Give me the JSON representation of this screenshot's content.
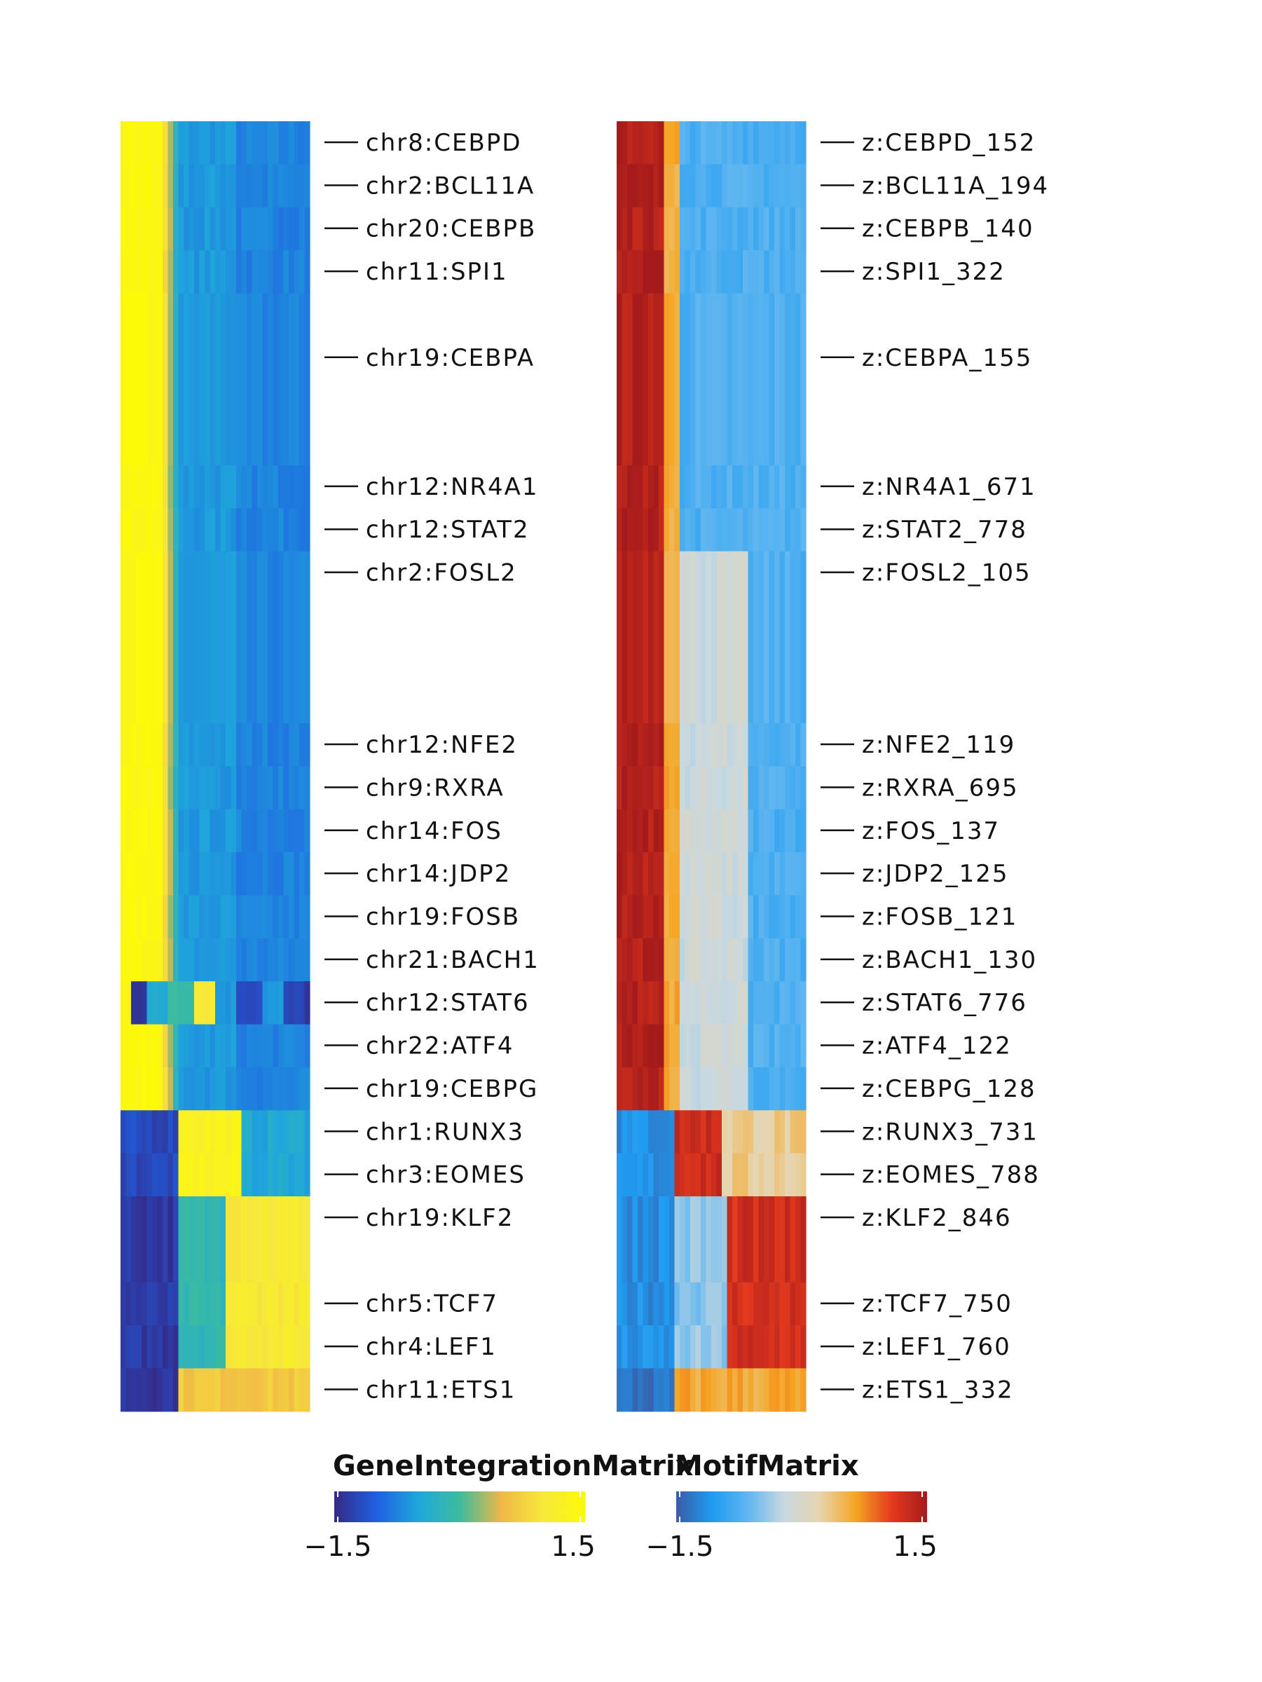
{
  "chart_data": [
    {
      "type": "heatmap",
      "name": "GeneIntegrationMatrix",
      "legend_title": "GeneIntegrationMatrix",
      "color_range": [
        -1.5,
        1.5
      ],
      "tick_labels": [
        "−1.5",
        "1.5"
      ],
      "palette": [
        "#352a87",
        "#1f5fe0",
        "#1fa7dc",
        "#3cbc9f",
        "#f0b846",
        "#f7e93a",
        "#fcfa06"
      ],
      "row_labels": [
        "chr8:CEBPD",
        "chr2:BCL11A",
        "chr20:CEBPB",
        "chr11:SPI1",
        "chr19:CEBPA",
        "chr12:NR4A1",
        "chr12:STAT2",
        "chr2:FOSL2",
        "chr12:NFE2",
        "chr9:RXRA",
        "chr14:FOS",
        "chr14:JDP2",
        "chr19:FOSB",
        "chr21:BACH1",
        "chr12:STAT6",
        "chr22:ATF4",
        "chr19:CEBPG",
        "chr1:RUNX3",
        "chr3:EOMES",
        "chr19:KLF2",
        "chr5:TCF7",
        "chr4:LEF1",
        "chr11:ETS1"
      ]
    },
    {
      "type": "heatmap",
      "name": "MotifMatrix",
      "legend_title": "MotifMatrix",
      "color_range": [
        -1.5,
        1.5
      ],
      "tick_labels": [
        "−1.5",
        "1.5"
      ],
      "palette": [
        "#3b5ba8",
        "#1e9bf0",
        "#5fb6f0",
        "#c8d8e0",
        "#e6d5b0",
        "#f5a623",
        "#e53a1e",
        "#a51b1b"
      ],
      "row_labels": [
        "z:CEBPD_152",
        "z:BCL11A_194",
        "z:CEBPB_140",
        "z:SPI1_322",
        "z:CEBPA_155",
        "z:NR4A1_671",
        "z:STAT2_778",
        "z:FOSL2_105",
        "z:NFE2_119",
        "z:RXRA_695",
        "z:FOS_137",
        "z:JDP2_125",
        "z:FOSB_121",
        "z:BACH1_130",
        "z:STAT6_776",
        "z:ATF4_122",
        "z:CEBPG_128",
        "z:RUNX3_731",
        "z:EOMES_788",
        "z:KLF2_846",
        "z:TCF7_750",
        "z:LEF1_760",
        "z:ETS1_332"
      ]
    }
  ]
}
